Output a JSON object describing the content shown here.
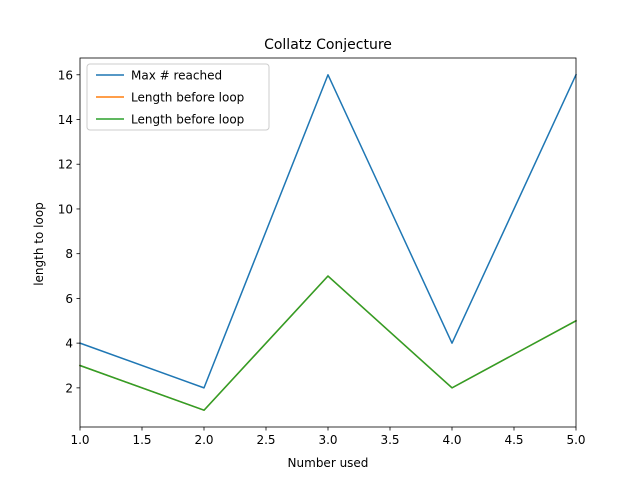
{
  "chart_data": {
    "type": "line",
    "title": "Collatz Conjecture",
    "xlabel": "Number used",
    "ylabel": "length to loop",
    "x": [
      1,
      2,
      3,
      4,
      5
    ],
    "xlim": [
      1.0,
      5.0
    ],
    "ylim": [
      0.25,
      16.75
    ],
    "xticks": [
      "1.0",
      "1.5",
      "2.0",
      "2.5",
      "3.0",
      "3.5",
      "4.0",
      "4.5",
      "5.0"
    ],
    "yticks": [
      "2",
      "4",
      "6",
      "8",
      "10",
      "12",
      "14",
      "16"
    ],
    "grid": false,
    "legend_position": "top-left",
    "series": [
      {
        "name": "Max # reached",
        "color": "#1f77b4",
        "values": [
          4,
          2,
          16,
          4,
          16
        ]
      },
      {
        "name": "Length before loop",
        "color": "#ff7f0e",
        "values": [
          3,
          1,
          7,
          2,
          5
        ]
      },
      {
        "name": "Length before loop",
        "color": "#2ca02c",
        "values": [
          3,
          1,
          7,
          2,
          5
        ]
      }
    ]
  }
}
